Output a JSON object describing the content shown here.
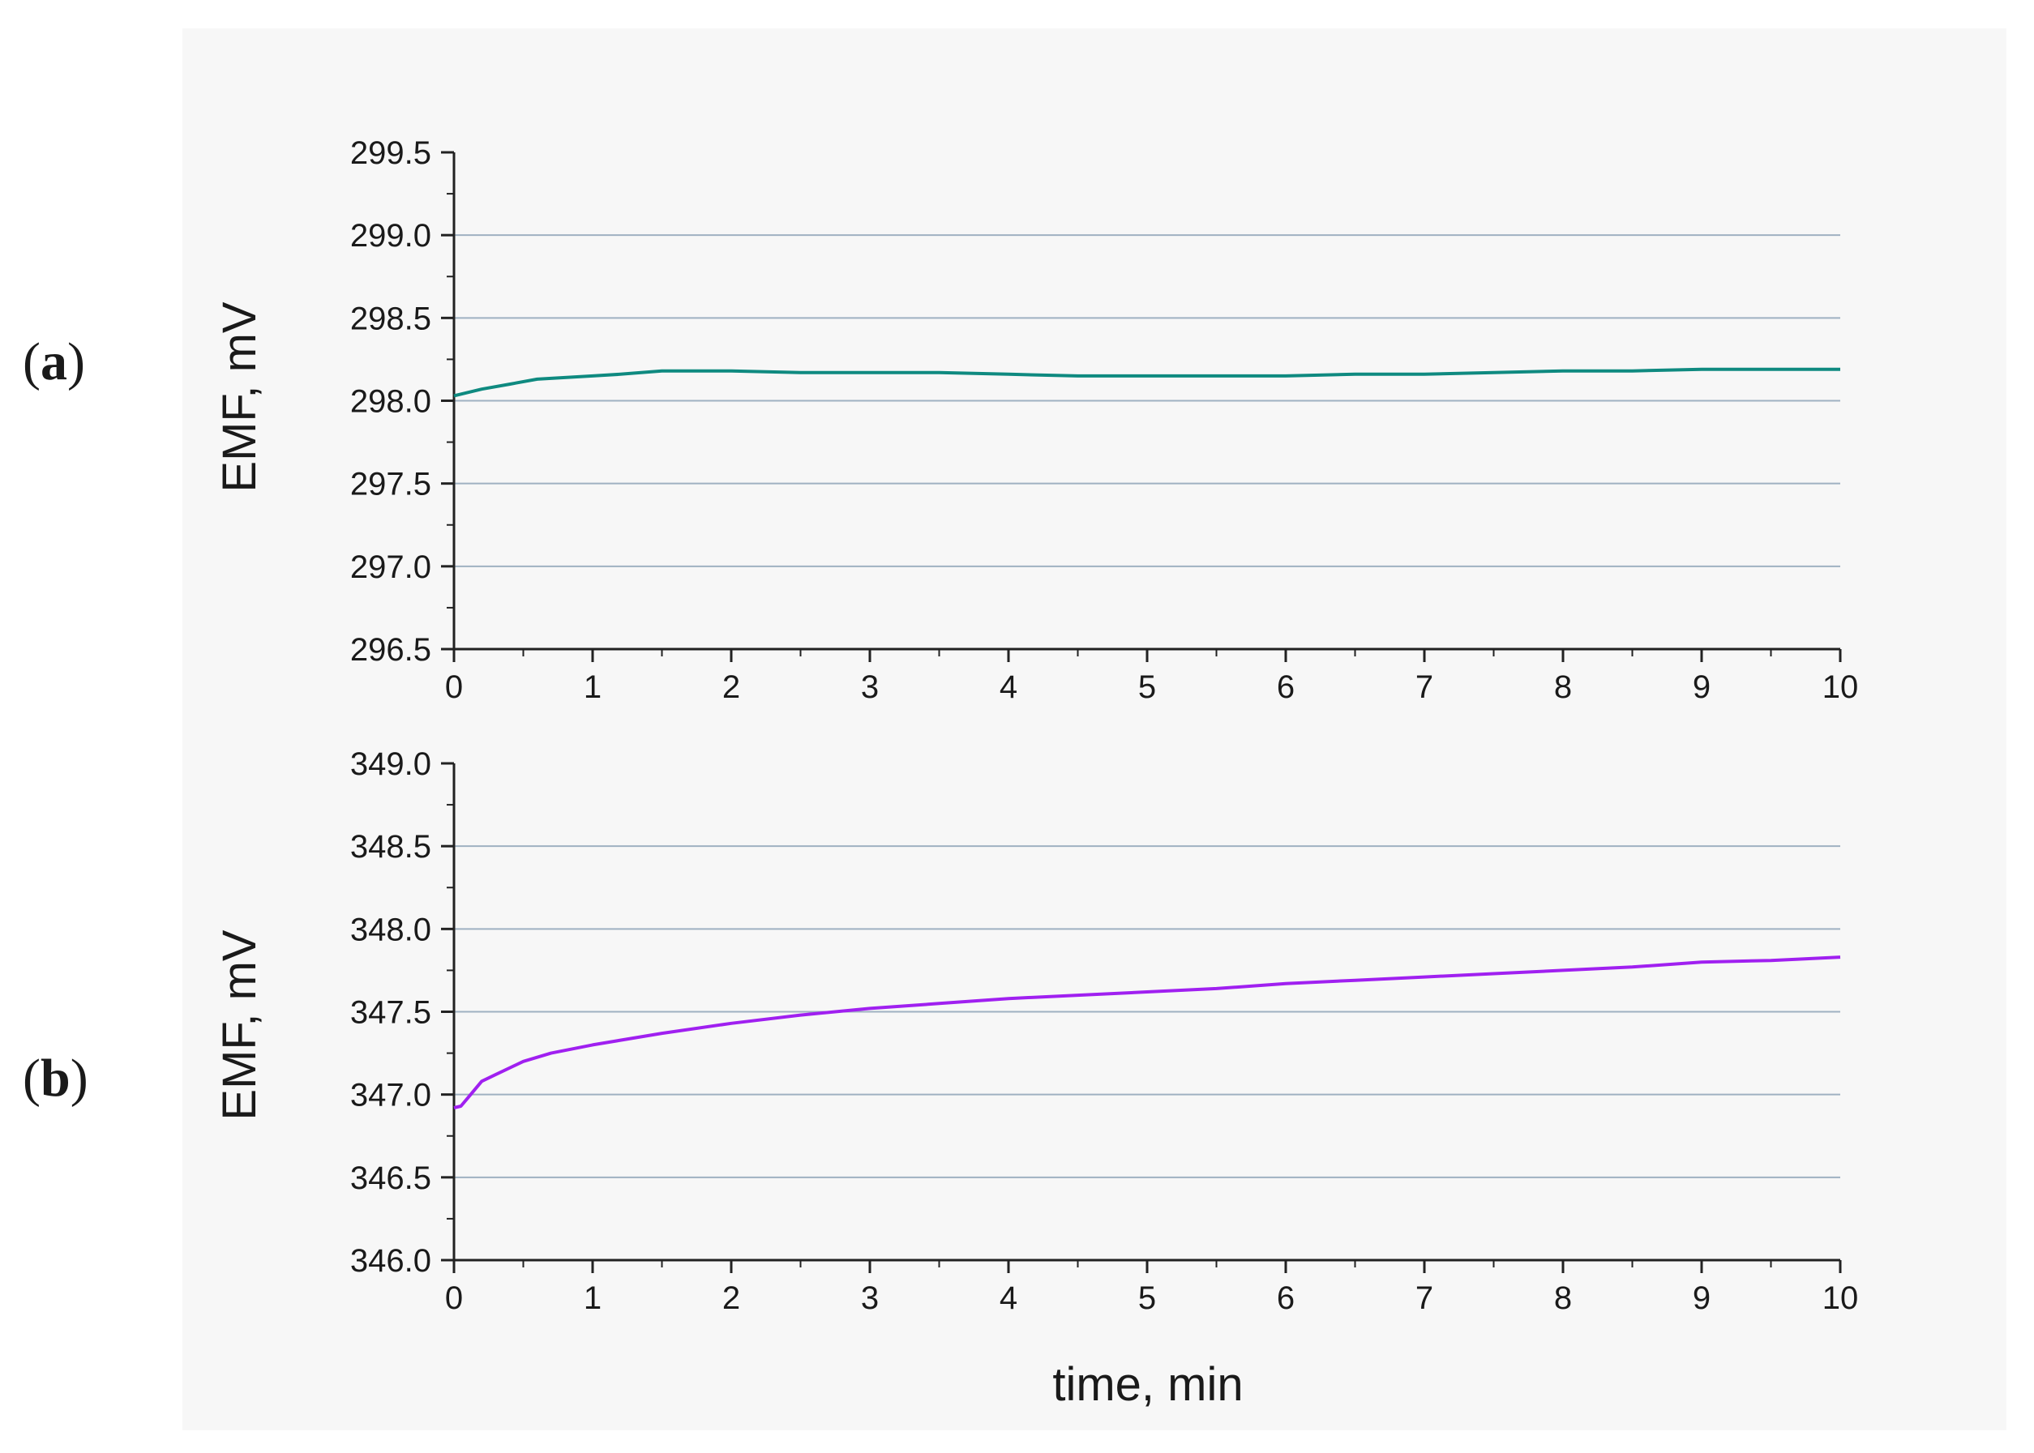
{
  "panel_labels": [
    "(a)",
    "(b)"
  ],
  "colors": {
    "series_a": "#0f8a80",
    "series_b": "#a020f0",
    "grid": "#9fb1c2",
    "axis": "#222222",
    "plot_background": "#f7f7f7"
  },
  "chart_data": [
    {
      "type": "line",
      "panel": "(a)",
      "xlabel": "",
      "ylabel": "EMF, mV",
      "xlim": [
        0,
        10
      ],
      "ylim": [
        296.5,
        299.5
      ],
      "xticks": [
        "0",
        "1",
        "2",
        "3",
        "4",
        "5",
        "6",
        "7",
        "8",
        "9",
        "10"
      ],
      "yticks": [
        "296.5",
        "297.0",
        "297.5",
        "298.0",
        "298.5",
        "299.0",
        "299.5"
      ],
      "grid": true,
      "series": [
        {
          "color": "#0f8a80",
          "x": [
            0,
            0.2,
            0.4,
            0.6,
            0.8,
            1.0,
            1.2,
            1.5,
            1.8,
            2.0,
            2.5,
            3.0,
            3.5,
            4.0,
            4.5,
            5.0,
            5.5,
            6.0,
            6.5,
            7.0,
            7.5,
            8.0,
            8.5,
            9.0,
            9.5,
            10.0
          ],
          "y": [
            298.03,
            298.07,
            298.1,
            298.13,
            298.14,
            298.15,
            298.16,
            298.18,
            298.18,
            298.18,
            298.17,
            298.17,
            298.17,
            298.16,
            298.15,
            298.15,
            298.15,
            298.15,
            298.16,
            298.16,
            298.17,
            298.18,
            298.18,
            298.19,
            298.19,
            298.19
          ]
        }
      ]
    },
    {
      "type": "line",
      "panel": "(b)",
      "xlabel": "time, min",
      "ylabel": "EMF, mV",
      "xlim": [
        0,
        10
      ],
      "ylim": [
        346.0,
        349.0
      ],
      "xticks": [
        "0",
        "1",
        "2",
        "3",
        "4",
        "5",
        "6",
        "7",
        "8",
        "9",
        "10"
      ],
      "yticks": [
        "346.0",
        "346.5",
        "347.0",
        "347.5",
        "348.0",
        "348.5",
        "349.0"
      ],
      "grid": true,
      "series": [
        {
          "color": "#a020f0",
          "x": [
            0,
            0.05,
            0.1,
            0.2,
            0.3,
            0.5,
            0.7,
            1.0,
            1.5,
            2.0,
            2.5,
            3.0,
            3.5,
            4.0,
            4.5,
            5.0,
            5.5,
            6.0,
            6.5,
            7.0,
            7.5,
            8.0,
            8.5,
            9.0,
            9.5,
            10.0
          ],
          "y": [
            346.92,
            346.93,
            346.98,
            347.08,
            347.12,
            347.2,
            347.25,
            347.3,
            347.37,
            347.43,
            347.48,
            347.52,
            347.55,
            347.58,
            347.6,
            347.62,
            347.64,
            347.67,
            347.69,
            347.71,
            347.73,
            347.75,
            347.77,
            347.8,
            347.81,
            347.83
          ]
        }
      ]
    }
  ]
}
